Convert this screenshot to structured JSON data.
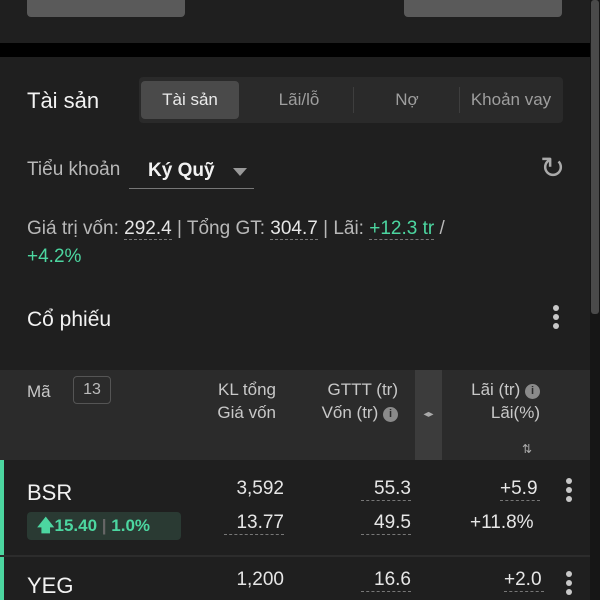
{
  "header": {
    "title": "Tài sản",
    "tabs": [
      {
        "label": "Tài sản",
        "active": true
      },
      {
        "label": "Lãi/lỗ"
      },
      {
        "label": "Nợ"
      },
      {
        "label": "Khoản vay"
      }
    ]
  },
  "account": {
    "label": "Tiểu khoản",
    "value": "Ký Quỹ",
    "refresh_icon": "refresh-icon"
  },
  "summary": {
    "capital_label": "Giá trị vốn:",
    "capital": "292.4",
    "total_label": "| Tổng GT:",
    "total": "304.7",
    "profit_label": "| Lãi:",
    "profit": "+12.3 tr",
    "slash": "/",
    "profit_pct": "+4.2%"
  },
  "stocks": {
    "title": "Cổ phiếu",
    "columns": {
      "code": "Mã",
      "count": "13",
      "vol": "KL tổng",
      "avg": "Giá vốn",
      "mv": "GTTT (tr)",
      "cost": "Vốn (tr)",
      "pl": "Lãi (tr)",
      "plpct": "Lãi(%)",
      "sort": "⇅"
    },
    "rows": [
      {
        "code": "BSR",
        "price": "15.40",
        "change": "1.0%",
        "vol": "3,592",
        "avg": "13.77",
        "mv": "55.3",
        "cost": "49.5",
        "pl": "+5.9",
        "plpct": "+11.8%"
      },
      {
        "code": "YEG",
        "vol": "1,200",
        "mv": "16.6",
        "pl": "+2.0"
      }
    ]
  },
  "colors": {
    "positive": "#4cd6a0",
    "background": "#1f1f1f"
  }
}
